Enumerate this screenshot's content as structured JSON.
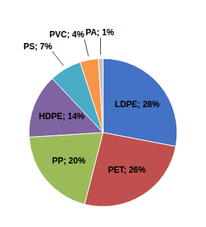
{
  "chart_data": {
    "type": "pie",
    "categories": [
      "LDPE; 28%",
      "PET; 26%",
      "PP; 20%",
      "HDPE; 14%",
      "PS; 7%",
      "PVC; 4%",
      "PA; 1%"
    ],
    "values": [
      28,
      26,
      20,
      14,
      7,
      4,
      1
    ],
    "colors": [
      "#4472C4",
      "#C0504D",
      "#9BBB59",
      "#8064A2",
      "#4BACC6",
      "#F79646",
      "#C0C0C0"
    ]
  }
}
